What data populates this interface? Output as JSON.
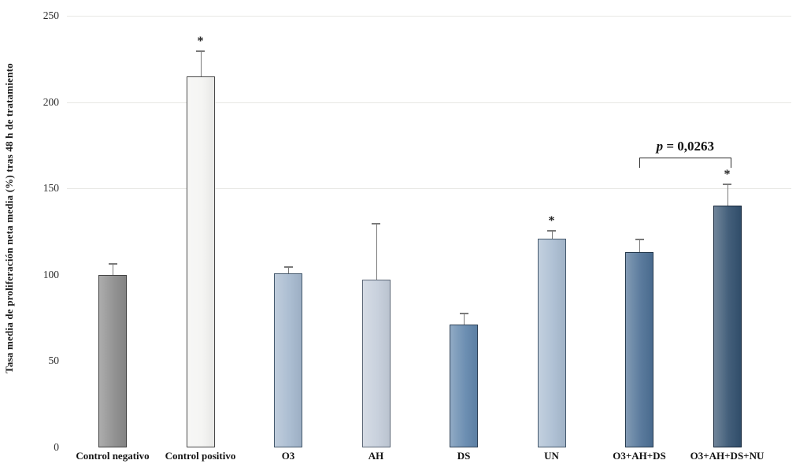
{
  "figure": {
    "background": "#ffffff"
  },
  "chart_data": {
    "type": "bar",
    "title": "",
    "xlabel": "",
    "ylabel": "Tasa media de proliferación neta media (%) tras 48 h de tratamiento",
    "ylim": [
      0,
      250
    ],
    "yticks": [
      0,
      50,
      100,
      150,
      200,
      250
    ],
    "gridlines_at": [
      150,
      200,
      250
    ],
    "grid": "faint horizontal lines at 150, 200, 250 only",
    "legend": null,
    "categories": [
      "Control negativo",
      "Control positivo",
      "O3",
      "AH",
      "DS",
      "UN",
      "O3+AH+DS",
      "O3+AH+DS+NU"
    ],
    "values": [
      100,
      215,
      101,
      97,
      71,
      121,
      113,
      140
    ],
    "error_plus": [
      7,
      15,
      4,
      33,
      7,
      5,
      8,
      13
    ],
    "significance_marker": "*",
    "significant": [
      false,
      true,
      false,
      false,
      false,
      true,
      false,
      true
    ],
    "bar_fill_colors": [
      "#8a8a8a",
      "#f4f4f2",
      "#a5b8ce",
      "#c4cdda",
      "#6186ac",
      "#a9bcd1",
      "#4d7095",
      "#33516f"
    ],
    "bar_border_colors": [
      "#3f3f3f",
      "#4a4a4a",
      "#44586c",
      "#5d6878",
      "#2f4257",
      "#44586c",
      "#253a4e",
      "#15263a"
    ],
    "error_bar_color": "#7a7a7a",
    "annotation": {
      "full_text": "p = 0,0263",
      "p_symbol": "p",
      "value_text": " = 0,0263",
      "from_category": "O3+AH+DS",
      "to_category": "O3+AH+DS+NU",
      "from_index": 6,
      "to_index": 7
    }
  }
}
